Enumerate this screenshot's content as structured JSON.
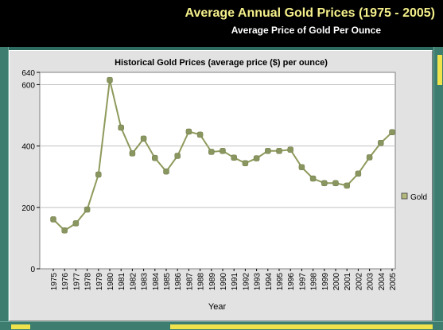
{
  "header": {
    "title": "Average Annual Gold Prices (1975 - 2005)",
    "subtitle": "Average Price of Gold Per Ounce"
  },
  "colors": {
    "line": "#8e9a5c",
    "marker": "#8a9660",
    "title_text": "#f4ef8a",
    "plot_background": "#ffffff",
    "panel_background": "#e2e2e2"
  },
  "chart_data": {
    "type": "line",
    "title": "Historical Gold Prices (average price ($) per ounce)",
    "xlabel": "Year",
    "ylabel": "",
    "ylim": [
      0,
      640
    ],
    "yticks": [
      0,
      200,
      400,
      600,
      640
    ],
    "grid": true,
    "legend_position": "right",
    "x": [
      "1975",
      "1976",
      "1977",
      "1978",
      "1979",
      "1980",
      "1981",
      "1982",
      "1983",
      "1984",
      "1985",
      "1986",
      "1987",
      "1988",
      "1989",
      "1990",
      "1991",
      "1992",
      "1993",
      "1994",
      "1995",
      "1996",
      "1997",
      "1998",
      "1999",
      "2000",
      "2001",
      "2002",
      "2003",
      "2004",
      "2005"
    ],
    "series": [
      {
        "name": "Gold",
        "values": [
          161,
          125,
          148,
          193,
          307,
          615,
          460,
          376,
          424,
          361,
          317,
          368,
          447,
          437,
          381,
          384,
          362,
          344,
          360,
          384,
          384,
          388,
          331,
          294,
          279,
          279,
          271,
          310,
          363,
          410,
          445
        ]
      }
    ]
  }
}
